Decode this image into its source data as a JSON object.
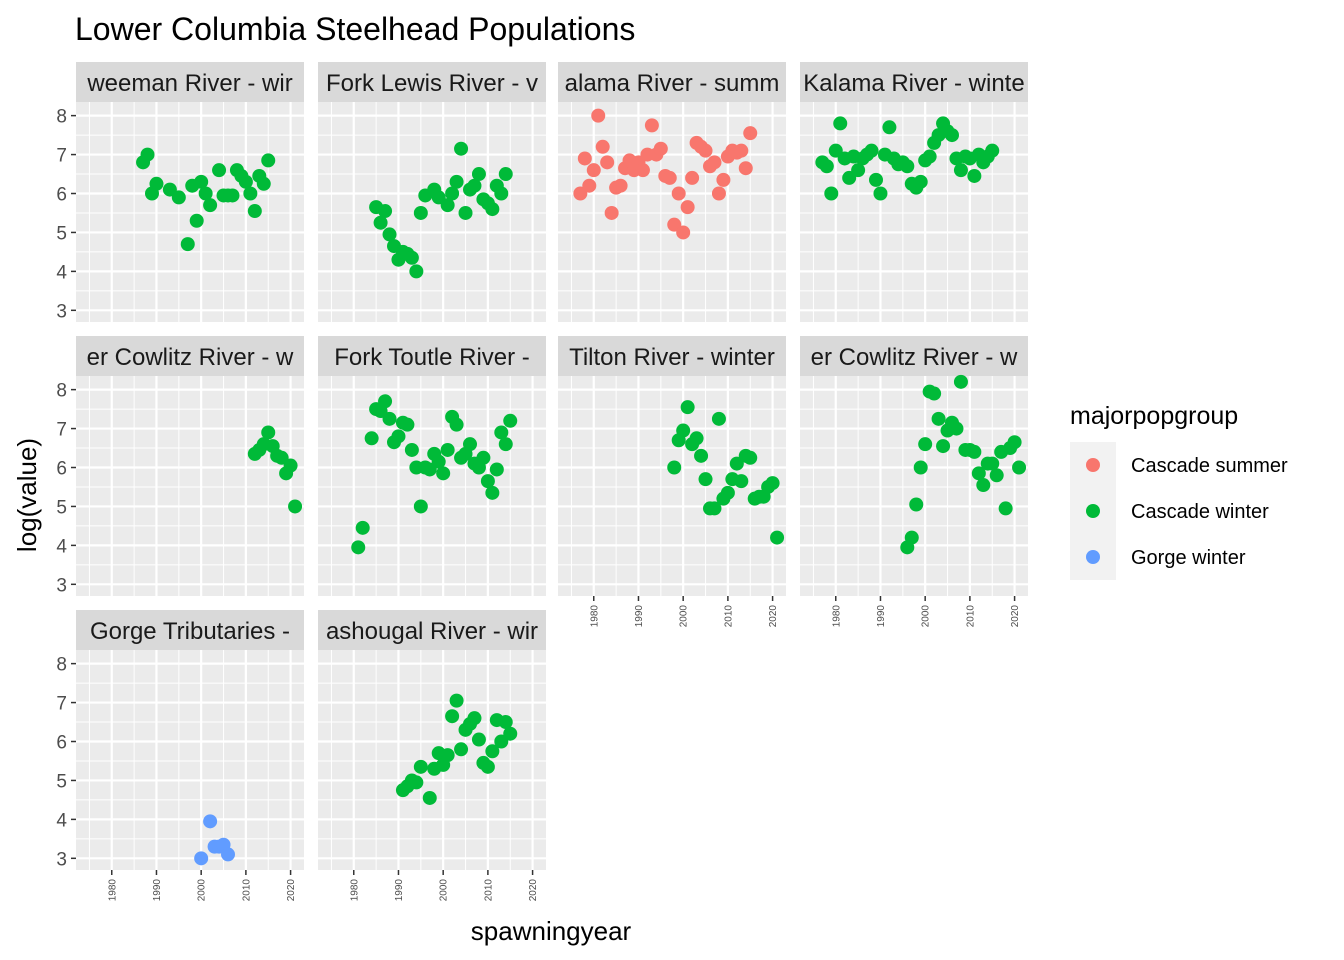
{
  "chart_data": {
    "type": "scatter",
    "title": "Lower Columbia Steelhead Populations",
    "xlabel": "spawningyear",
    "ylabel": "log(value)",
    "xlim": [
      1972,
      2023
    ],
    "ylim": [
      2.7,
      8.35
    ],
    "x_ticks": [
      1980,
      1990,
      2000,
      2010,
      2020
    ],
    "y_ticks": [
      3,
      4,
      5,
      6,
      7,
      8
    ],
    "grid": true,
    "legend": {
      "title": "majorpopgroup",
      "placement": "right",
      "entries": [
        {
          "name": "Cascade summer",
          "color": "#F8766D"
        },
        {
          "name": "Cascade winter",
          "color": "#00BA38"
        },
        {
          "name": "Gorge winter",
          "color": "#619CFF"
        }
      ]
    },
    "panels": [
      {
        "label": "weeman River - wir",
        "group": "Cascade winter",
        "x": [
          1987,
          1988,
          1989,
          1990,
          1993,
          1995,
          1997,
          1998,
          1999,
          2000,
          2001,
          2002,
          2004,
          2005,
          2006,
          2007,
          2008,
          2009,
          2010,
          2011,
          2012,
          2013,
          2014,
          2015
        ],
        "y": [
          6.8,
          7.0,
          6.0,
          6.25,
          6.1,
          5.9,
          4.7,
          6.2,
          5.3,
          6.3,
          6.0,
          5.7,
          6.6,
          5.95,
          5.95,
          5.95,
          6.6,
          6.45,
          6.3,
          6.0,
          5.55,
          6.45,
          6.25,
          6.85
        ]
      },
      {
        "label": "Fork Lewis River - v",
        "group": "Cascade winter",
        "x": [
          1985,
          1986,
          1987,
          1988,
          1989,
          1990,
          1991,
          1992,
          1993,
          1994,
          1995,
          1996,
          1998,
          1999,
          2001,
          2002,
          2003,
          2004,
          2005,
          2006,
          2007,
          2008,
          2009,
          2010,
          2011,
          2012,
          2013,
          2014
        ],
        "y": [
          5.65,
          5.25,
          5.55,
          4.95,
          4.65,
          4.3,
          4.5,
          4.45,
          4.35,
          4.0,
          5.5,
          5.95,
          6.1,
          5.9,
          5.7,
          6.0,
          6.3,
          7.15,
          5.5,
          6.1,
          6.2,
          6.5,
          5.85,
          5.75,
          5.6,
          6.2,
          6.0,
          6.5
        ]
      },
      {
        "label": "alama River - summ",
        "group": "Cascade summer",
        "x": [
          1977,
          1978,
          1979,
          1980,
          1981,
          1982,
          1983,
          1984,
          1985,
          1986,
          1987,
          1988,
          1989,
          1990,
          1991,
          1992,
          1993,
          1994,
          1995,
          1996,
          1997,
          1998,
          1999,
          2000,
          2001,
          2002,
          2003,
          2004,
          2005,
          2006,
          2007,
          2008,
          2009,
          2010,
          2011,
          2012,
          2013,
          2014,
          2015
        ],
        "y": [
          6.0,
          6.9,
          6.2,
          6.6,
          8.0,
          7.2,
          6.8,
          5.5,
          6.15,
          6.2,
          6.65,
          6.85,
          6.6,
          6.8,
          6.6,
          7.0,
          7.75,
          7.0,
          7.15,
          6.45,
          6.4,
          5.2,
          6.0,
          5.0,
          5.65,
          6.4,
          7.3,
          7.2,
          7.1,
          6.7,
          6.8,
          6.0,
          6.35,
          6.95,
          7.1,
          7.05,
          7.1,
          6.65,
          7.55
        ]
      },
      {
        "label": "Kalama River - winte",
        "group": "Cascade winter",
        "x": [
          1977,
          1978,
          1979,
          1980,
          1981,
          1982,
          1983,
          1984,
          1985,
          1986,
          1987,
          1988,
          1989,
          1990,
          1991,
          1992,
          1993,
          1994,
          1995,
          1996,
          1997,
          1998,
          1999,
          2000,
          2001,
          2002,
          2003,
          2004,
          2005,
          2006,
          2007,
          2008,
          2009,
          2010,
          2011,
          2012,
          2013,
          2014,
          2015
        ],
        "y": [
          6.8,
          6.7,
          6.0,
          7.1,
          7.8,
          6.9,
          6.4,
          6.95,
          6.6,
          6.9,
          7.0,
          7.1,
          6.35,
          6.0,
          7.0,
          7.7,
          6.9,
          6.75,
          6.8,
          6.7,
          6.25,
          6.15,
          6.3,
          6.85,
          6.95,
          7.3,
          7.5,
          7.8,
          7.6,
          7.5,
          6.9,
          6.6,
          6.95,
          6.9,
          6.45,
          7.0,
          6.8,
          6.95,
          7.1
        ]
      },
      {
        "label": "er Cowlitz River - w",
        "group": "Cascade winter",
        "x": [
          2012,
          2013,
          2014,
          2015,
          2016,
          2017,
          2018,
          2019,
          2020,
          2021
        ],
        "y": [
          6.35,
          6.45,
          6.6,
          6.9,
          6.55,
          6.3,
          6.25,
          5.85,
          6.05,
          5.0
        ]
      },
      {
        "label": "Fork Toutle River -",
        "group": "Cascade winter",
        "x": [
          1981,
          1982,
          1984,
          1985,
          1986,
          1987,
          1988,
          1989,
          1990,
          1991,
          1992,
          1993,
          1994,
          1995,
          1996,
          1997,
          1998,
          1999,
          2000,
          2001,
          2002,
          2003,
          2004,
          2005,
          2006,
          2007,
          2008,
          2009,
          2010,
          2011,
          2012,
          2013,
          2014,
          2015
        ],
        "y": [
          3.95,
          4.45,
          6.75,
          7.5,
          7.45,
          7.7,
          7.25,
          6.65,
          6.8,
          7.15,
          7.1,
          6.45,
          6.0,
          5.0,
          6.0,
          5.95,
          6.35,
          6.15,
          5.85,
          6.45,
          7.3,
          7.1,
          6.25,
          6.35,
          6.6,
          6.1,
          6.0,
          6.25,
          5.65,
          5.35,
          5.95,
          6.9,
          6.6,
          7.2
        ]
      },
      {
        "label": "Tilton River - winter",
        "group": "Cascade winter",
        "x": [
          1998,
          1999,
          2000,
          2001,
          2002,
          2003,
          2004,
          2005,
          2006,
          2007,
          2008,
          2009,
          2010,
          2011,
          2012,
          2013,
          2014,
          2015,
          2016,
          2017,
          2018,
          2019,
          2020,
          2021
        ],
        "y": [
          6.0,
          6.7,
          6.95,
          7.55,
          6.6,
          6.75,
          6.3,
          5.7,
          4.95,
          4.95,
          7.25,
          5.2,
          5.35,
          5.7,
          6.1,
          5.65,
          6.3,
          6.25,
          5.2,
          5.25,
          5.25,
          5.5,
          5.6,
          4.2
        ]
      },
      {
        "label": "er Cowlitz River - w",
        "group": "Cascade winter",
        "x": [
          1996,
          1997,
          1998,
          1999,
          2000,
          2001,
          2002,
          2003,
          2004,
          2005,
          2006,
          2007,
          2008,
          2009,
          2010,
          2011,
          2012,
          2013,
          2014,
          2015,
          2016,
          2017,
          2018,
          2019,
          2020,
          2021
        ],
        "y": [
          3.95,
          4.2,
          5.05,
          6.0,
          6.6,
          7.95,
          7.9,
          7.25,
          6.55,
          6.95,
          7.15,
          7.0,
          8.2,
          6.45,
          6.45,
          6.4,
          5.85,
          5.55,
          6.1,
          6.1,
          5.8,
          6.4,
          4.95,
          6.5,
          6.65,
          6.0
        ]
      },
      {
        "label": "Gorge Tributaries -",
        "group": "Gorge winter",
        "x": [
          2000,
          2002,
          2003,
          2004,
          2005,
          2006
        ],
        "y": [
          3.0,
          3.95,
          3.3,
          3.3,
          3.35,
          3.1
        ]
      },
      {
        "label": "ashougal River - wir",
        "group": "Cascade winter",
        "x": [
          1991,
          1992,
          1993,
          1994,
          1995,
          1997,
          1998,
          1999,
          2000,
          2001,
          2002,
          2003,
          2004,
          2005,
          2006,
          2007,
          2008,
          2009,
          2010,
          2011,
          2012,
          2013,
          2014,
          2015
        ],
        "y": [
          4.75,
          4.85,
          5.0,
          4.95,
          5.35,
          4.55,
          5.3,
          5.7,
          5.4,
          5.65,
          6.65,
          7.05,
          5.8,
          6.3,
          6.45,
          6.6,
          6.05,
          5.45,
          5.35,
          5.75,
          6.55,
          6.0,
          6.5,
          6.2
        ]
      }
    ]
  }
}
